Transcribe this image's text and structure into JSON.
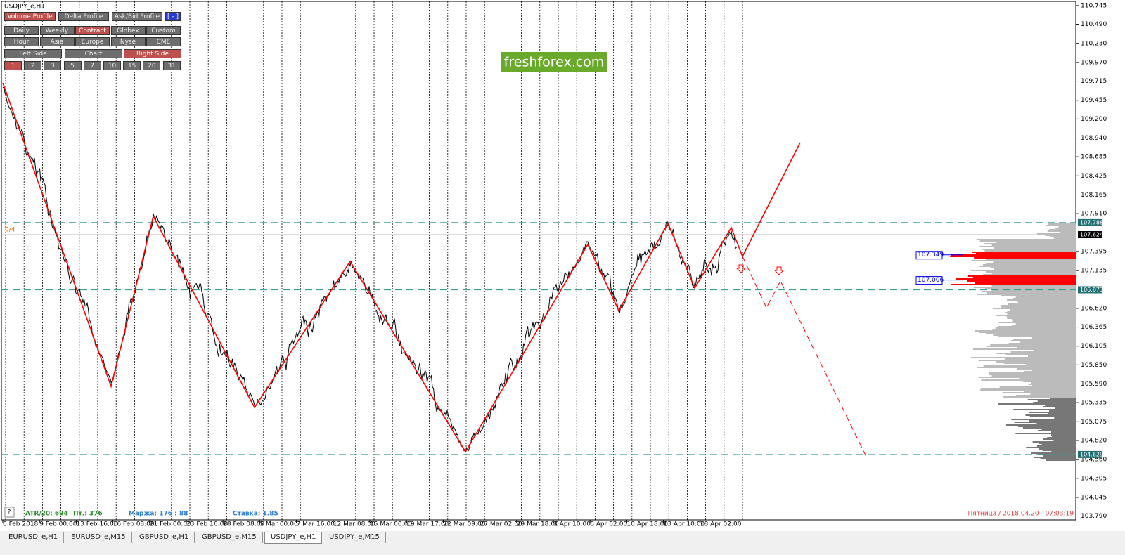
{
  "window_title": "USDJPY_e,H1",
  "toolbar": {
    "rows": [
      [
        "Volume Profile",
        "Delta Profile",
        "Ask/Bid Profile",
        "[ - ]"
      ],
      [
        "Daily",
        "Weekly",
        "Contract",
        "Globex",
        "Custom"
      ],
      [
        "Hour",
        "Asia",
        "Europe",
        "Nyse",
        "CME"
      ],
      [
        "Left Side",
        "Chart",
        "Right Side"
      ],
      [
        "1",
        "2",
        "3",
        "5",
        "7",
        "10",
        "15",
        "20",
        "31"
      ]
    ]
  },
  "watermark": "freshforex.com",
  "zigzag_label": "0/4",
  "price_axis": {
    "ylim": [
      103.738,
      110.802
    ],
    "ticks": [
      110.745,
      {
        "value": 110.49,
        "label": "110.490"
      },
      {
        "value": 110.23,
        "label": "110.230"
      },
      {
        "value": 109.97,
        "label": "109.970"
      },
      109.715,
      109.455,
      {
        "value": 109.2,
        "label": "109.200"
      },
      {
        "value": 108.94,
        "label": "108.940"
      },
      108.685,
      108.425,
      108.165,
      {
        "value": 107.91,
        "label": "107.910"
      },
      107.395,
      107.135,
      {
        "value": 106.62,
        "label": "106.620"
      },
      106.365,
      106.105,
      {
        "value": 105.85,
        "label": "105.850"
      },
      {
        "value": 105.59,
        "label": "105.590"
      },
      105.335,
      105.075,
      {
        "value": 104.82,
        "label": "104.820"
      },
      {
        "value": 104.56,
        "label": "104.560"
      },
      104.305,
      104.045,
      {
        "value": 103.79,
        "label": "103.790"
      }
    ]
  },
  "levels": [
    107.788,
    106.873,
    104.629
  ],
  "current_price": 107.624,
  "profile_levels": [
    107.349,
    107.006
  ],
  "time_axis": [
    "6 Feb 2018",
    "9 Feb 00:00",
    "13 Feb 16:00",
    "16 Feb 08:00",
    "21 Feb 00:00",
    "23 Feb 16:00",
    "28 Feb 08:00",
    "5 Mar 00:00",
    "7 Mar 16:00",
    "12 Mar 08:00",
    "15 Mar 00:00",
    "19 Mar 17:00",
    "22 Mar 09:00",
    "27 Mar 02:00",
    "29 Mar 18:00",
    "3 Apr 10:00",
    "6 Apr 02:00",
    "10 Apr 18:00",
    "13 Apr 10:00",
    "18 Apr 02:00"
  ],
  "status": {
    "help": "?",
    "atr": "ATR/20: 694",
    "points": "Пт.: 376",
    "margin": "Маржа: 176 : 88",
    "rate": "Ставка: 1.85",
    "clock": "Пятница / 2018.04.20 - 07:03:19"
  },
  "tabs": [
    "EURUSD_e,H1",
    "EURUSD_e,M15",
    "GBPUSD_e,H1",
    "GBPUSD_e,M15",
    "USDJPY_e,H1",
    "USDJPY_e,M15"
  ]
}
